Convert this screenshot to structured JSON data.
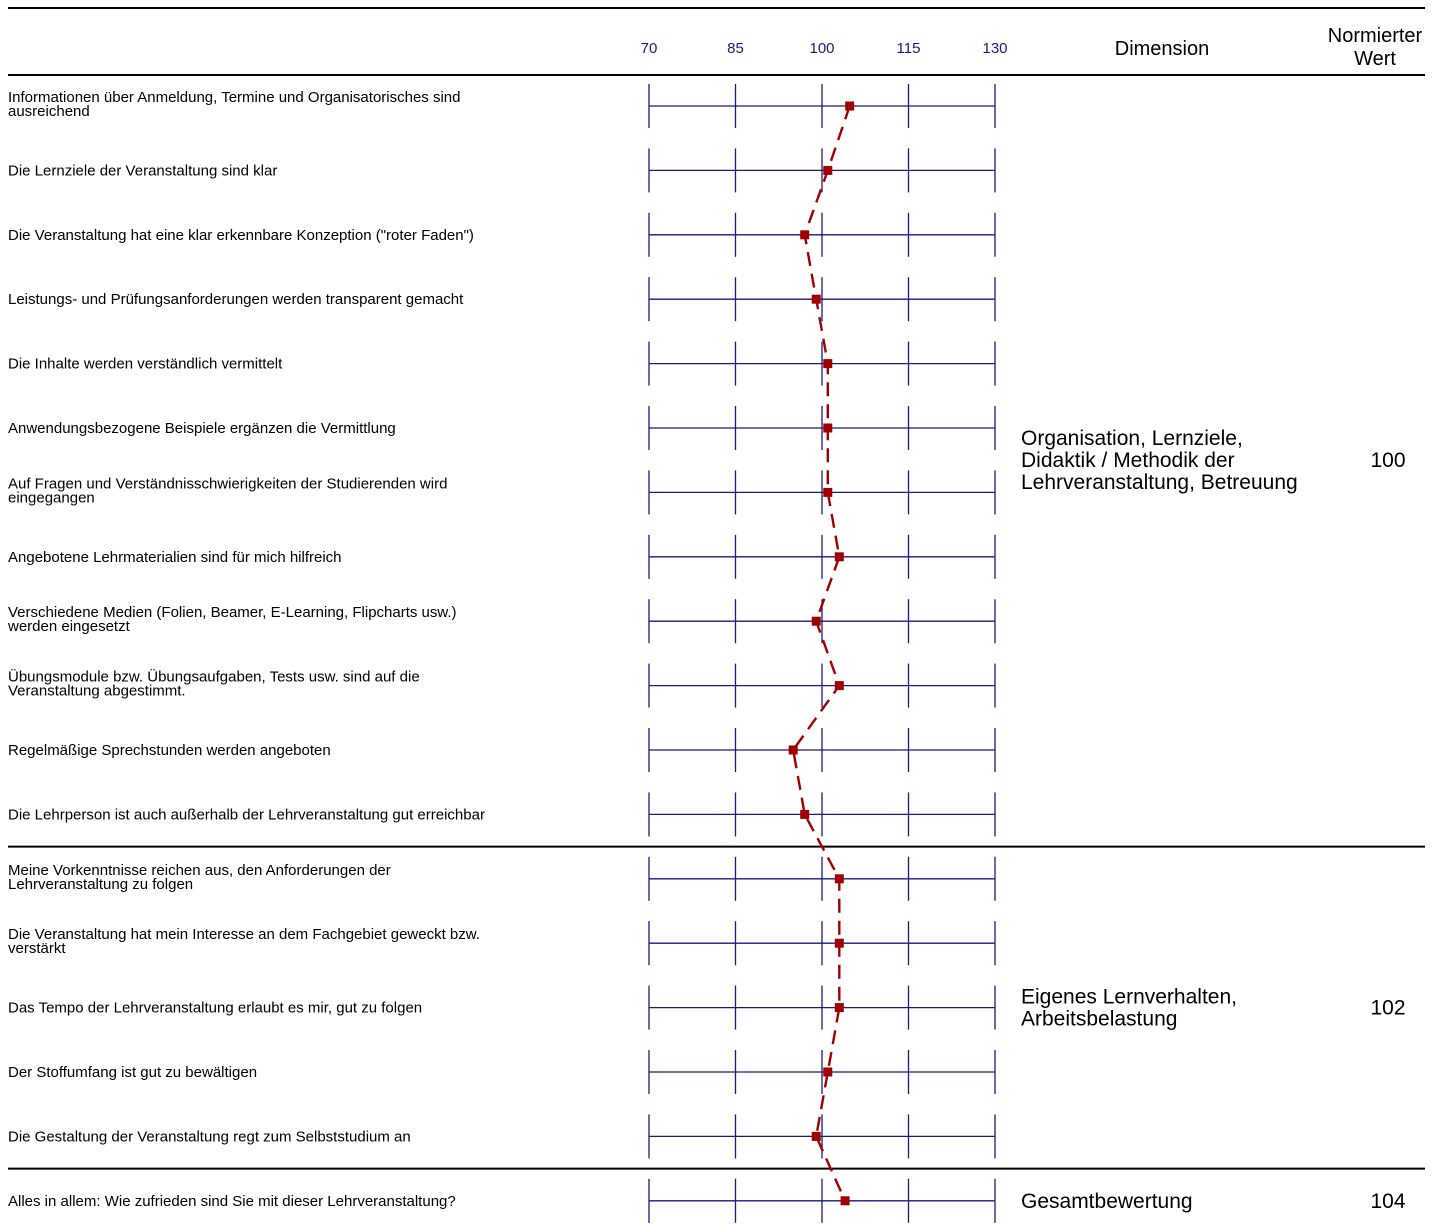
{
  "chart_data": {
    "type": "line",
    "orientation": "horizontal-profile",
    "x_ticks": [
      70,
      85,
      100,
      115,
      130
    ],
    "xlim": [
      70,
      130
    ],
    "header": {
      "dimension": "Dimension",
      "normed_value": [
        "Normierter",
        "Wert"
      ]
    },
    "series": [
      {
        "color": "#a00000"
      }
    ],
    "sections": [
      {
        "dimension": [
          "Organisation, Lernziele,",
          "Didaktik / Methodik der",
          "Lehrveranstaltung, Betreuung"
        ],
        "normed_value": "100",
        "items": [
          {
            "label": [
              "Informationen über Anmeldung, Termine und Organisatorisches sind",
              "ausreichend"
            ],
            "value": 104.8
          },
          {
            "label": [
              "Die Lernziele der Veranstaltung sind klar"
            ],
            "value": 101
          },
          {
            "label": [
              "Die Veranstaltung hat eine klar erkennbare Konzeption (\"roter Faden\")"
            ],
            "value": 97
          },
          {
            "label": [
              "Leistungs- und Prüfungsanforderungen werden transparent gemacht"
            ],
            "value": 99
          },
          {
            "label": [
              "Die Inhalte werden verständlich vermittelt"
            ],
            "value": 101
          },
          {
            "label": [
              "Anwendungsbezogene Beispiele ergänzen die Vermittlung"
            ],
            "value": 101
          },
          {
            "label": [
              "Auf Fragen und Verständnisschwierigkeiten der Studierenden wird",
              "eingegangen"
            ],
            "value": 101
          },
          {
            "label": [
              "Angebotene Lehrmaterialien sind für mich hilfreich"
            ],
            "value": 103
          },
          {
            "label": [
              "Verschiedene Medien (Folien, Beamer, E-Learning, Flipcharts usw.)",
              "werden eingesetzt"
            ],
            "value": 99
          },
          {
            "label": [
              "Übungsmodule bzw. Übungsaufgaben, Tests usw. sind auf die",
              "Veranstaltung abgestimmt."
            ],
            "value": 103
          },
          {
            "label": [
              "Regelmäßige Sprechstunden werden angeboten"
            ],
            "value": 95
          },
          {
            "label": [
              "Die Lehrperson ist auch außerhalb der Lehrveranstaltung gut erreichbar"
            ],
            "value": 97
          }
        ]
      },
      {
        "dimension": [
          "Eigenes Lernverhalten,",
          "Arbeitsbelastung"
        ],
        "normed_value": "102",
        "items": [
          {
            "label": [
              "Meine Vorkenntnisse reichen aus, den Anforderungen der",
              "Lehrveranstaltung zu folgen"
            ],
            "value": 103
          },
          {
            "label": [
              "Die Veranstaltung hat mein Interesse an dem Fachgebiet geweckt bzw.",
              "verstärkt"
            ],
            "value": 103
          },
          {
            "label": [
              "Das Tempo der Lehrveranstaltung erlaubt es mir, gut zu folgen"
            ],
            "value": 103
          },
          {
            "label": [
              "Der Stoffumfang ist gut zu bewältigen"
            ],
            "value": 101
          },
          {
            "label": [
              "Die Gestaltung der Veranstaltung regt zum Selbststudium an"
            ],
            "value": 99
          }
        ]
      },
      {
        "dimension": [
          "Gesamtbewertung"
        ],
        "normed_value": "104",
        "items": [
          {
            "label": [
              "Alles in allem: Wie zufrieden sind Sie mit dieser Lehrveranstaltung?"
            ],
            "value": 104
          }
        ]
      }
    ]
  }
}
